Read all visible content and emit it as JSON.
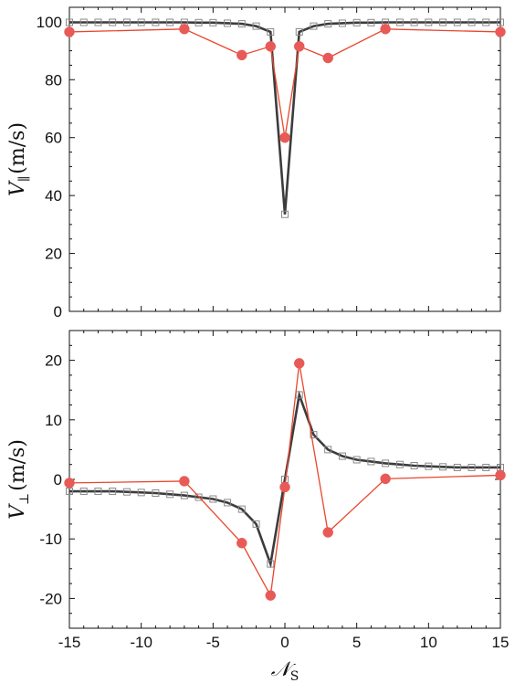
{
  "chart_data": [
    {
      "type": "line",
      "ylabel": "V",
      "ylabel_sub": "∥",
      "ylabel_unit": "(m/s)",
      "ylim": [
        0,
        105
      ],
      "yticks": [
        0,
        20,
        40,
        60,
        80,
        100
      ],
      "ytick_labels": [
        "0",
        "20",
        "40",
        "60",
        "80",
        "100"
      ],
      "xlim": [
        -15,
        15
      ],
      "series": [
        {
          "style": "dark-line-with-square-markers",
          "color": "#3c3c3c",
          "x": [
            -15,
            -14,
            -13,
            -12,
            -11,
            -10,
            -9,
            -8,
            -7,
            -6,
            -5,
            -4,
            -3,
            -2,
            -1,
            0,
            1,
            2,
            3,
            4,
            5,
            6,
            7,
            8,
            9,
            10,
            11,
            12,
            13,
            14,
            15
          ],
          "y": [
            99.8,
            99.8,
            99.8,
            99.8,
            99.8,
            99.8,
            99.8,
            99.8,
            99.8,
            99.7,
            99.7,
            99.5,
            99.3,
            98.5,
            96.5,
            33.5,
            96.5,
            98.5,
            99.3,
            99.5,
            99.7,
            99.7,
            99.8,
            99.8,
            99.8,
            99.8,
            99.8,
            99.8,
            99.8,
            99.8,
            99.8
          ]
        },
        {
          "style": "red-line-with-filled-circles",
          "color": "#e8472e",
          "x": [
            -15,
            -7,
            -3,
            -1,
            0,
            1,
            3,
            7,
            15
          ],
          "y": [
            96.5,
            97.5,
            88.5,
            91.5,
            60,
            91.5,
            87.5,
            97.5,
            96.5
          ]
        }
      ]
    },
    {
      "type": "line",
      "ylabel": "V",
      "ylabel_sub": "⊥",
      "ylabel_unit": "(m/s)",
      "ylim": [
        -25,
        25
      ],
      "yticks": [
        -20,
        -10,
        0,
        10,
        20
      ],
      "ytick_labels": [
        "-20",
        "-10",
        "0",
        "10",
        "20"
      ],
      "xlim": [
        -15,
        15
      ],
      "xticks": [
        -15,
        -10,
        -5,
        0,
        5,
        10,
        15
      ],
      "xtick_labels": [
        "-15",
        "-10",
        "-5",
        "0",
        "5",
        "10",
        "15"
      ],
      "xlabel": "𝒩",
      "xlabel_sub": "S",
      "series": [
        {
          "style": "dark-line-with-square-markers",
          "color": "#3c3c3c",
          "x": [
            -15,
            -14,
            -13,
            -12,
            -11,
            -10,
            -9,
            -8,
            -7,
            -6,
            -5,
            -4,
            -3,
            -2,
            -1,
            0,
            1,
            2,
            3,
            4,
            5,
            6,
            7,
            8,
            9,
            10,
            11,
            12,
            13,
            14,
            15
          ],
          "y": [
            -2.0,
            -2.0,
            -2.0,
            -2.0,
            -2.1,
            -2.2,
            -2.3,
            -2.5,
            -2.7,
            -3.0,
            -3.3,
            -3.9,
            -5.0,
            -7.5,
            -14.2,
            0,
            14.2,
            7.5,
            5.0,
            3.9,
            3.3,
            3.0,
            2.7,
            2.5,
            2.3,
            2.2,
            2.1,
            2.0,
            2.0,
            2.0,
            2.0
          ]
        },
        {
          "style": "red-line-with-filled-circles",
          "color": "#e8472e",
          "x": [
            -15,
            -7,
            -3,
            -1,
            0,
            1,
            3,
            7,
            15
          ],
          "y": [
            -0.6,
            -0.3,
            -10.7,
            -19.5,
            -1.3,
            19.5,
            -8.9,
            0.1,
            0.7
          ]
        }
      ]
    }
  ]
}
